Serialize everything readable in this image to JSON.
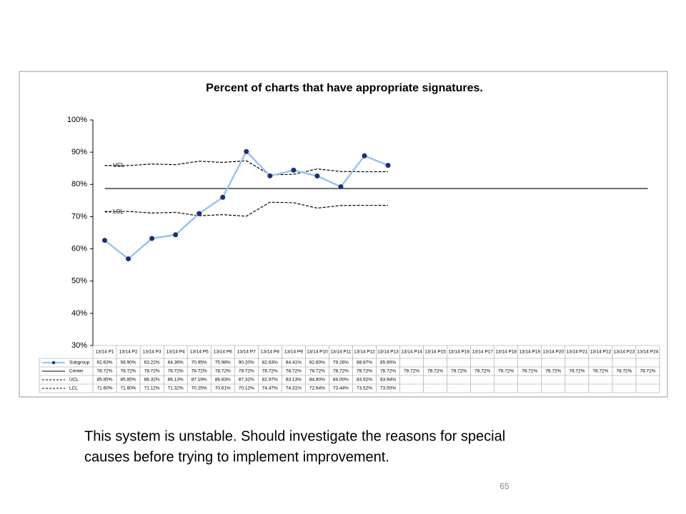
{
  "chart_data": {
    "type": "line",
    "title": "Percent of charts that have appropriate signatures.",
    "categories": [
      "13/14 P1",
      "13/14 P2",
      "13/14 P3",
      "13/14 P4",
      "13/14 P5",
      "13/14 P6",
      "13/14 P7",
      "13/14 P8",
      "13/14 P9",
      "13/14 P10",
      "13/14 P11",
      "13/14 P12",
      "13/14 P13",
      "13/14 P14",
      "13/14 P15",
      "13/14 P16",
      "13/14 P17",
      "13/14 P18",
      "13/14 P19",
      "13/14 P20",
      "13/14 P21",
      "13/14 P22",
      "13/14 P23",
      "13/14 P24"
    ],
    "series": [
      {
        "name": "Subgroup",
        "color": "#9dc3e6",
        "marker_color": "#1a2f78",
        "dash": false,
        "values": [
          62.63,
          56.9,
          63.22,
          64.36,
          70.95,
          75.98,
          90.2,
          82.63,
          84.41,
          82.6,
          79.26,
          88.87,
          85.9,
          null,
          null,
          null,
          null,
          null,
          null,
          null,
          null,
          null,
          null,
          null
        ],
        "value_labels": [
          "62.63%",
          "56.90%",
          "63.22%",
          "64.36%",
          "70.95%",
          "75.98%",
          "90.20%",
          "82.63%",
          "84.41%",
          "82.60%",
          "79.26%",
          "88.87%",
          "85.90%",
          null,
          null,
          null,
          null,
          null,
          null,
          null,
          null,
          null,
          null,
          null
        ]
      },
      {
        "name": "Center",
        "color": "#000000",
        "dash": false,
        "values": [
          78.72,
          78.72,
          78.72,
          78.72,
          78.72,
          78.72,
          78.72,
          78.72,
          78.72,
          78.72,
          78.72,
          78.72,
          78.72,
          78.72,
          78.72,
          78.72,
          78.72,
          78.72,
          78.72,
          78.72,
          78.72,
          78.72,
          78.72,
          78.72
        ],
        "value_labels": [
          "78.72%",
          "78.72%",
          "78.72%",
          "78.72%",
          "78.72%",
          "78.72%",
          "78.72%",
          "78.72%",
          "78.72%",
          "78.72%",
          "78.72%",
          "78.72%",
          "78.72%",
          "78.72%",
          "78.72%",
          "78.72%",
          "78.72%",
          "78.72%",
          "78.72%",
          "78.72%",
          "78.72%",
          "78.72%",
          "78.72%",
          "78.72%"
        ]
      },
      {
        "name": "UCL",
        "color": "#000000",
        "dash": true,
        "values": [
          85.85,
          85.85,
          86.32,
          86.13,
          87.19,
          86.83,
          87.32,
          82.97,
          83.13,
          84.8,
          84.0,
          83.92,
          83.94,
          null,
          null,
          null,
          null,
          null,
          null,
          null,
          null,
          null,
          null,
          null
        ],
        "value_labels": [
          "85.85%",
          "85.85%",
          "86.32%",
          "86.13%",
          "87.19%",
          "86.83%",
          "87.32%",
          "82.97%",
          "83.13%",
          "84.80%",
          "84.00%",
          "83.92%",
          "83.94%",
          null,
          null,
          null,
          null,
          null,
          null,
          null,
          null,
          null,
          null,
          null
        ]
      },
      {
        "name": "LCL",
        "color": "#000000",
        "dash": true,
        "values": [
          71.6,
          71.6,
          71.12,
          71.32,
          70.25,
          70.61,
          70.12,
          74.47,
          74.31,
          72.64,
          73.44,
          73.52,
          73.5,
          null,
          null,
          null,
          null,
          null,
          null,
          null,
          null,
          null,
          null,
          null
        ],
        "value_labels": [
          "71.60%",
          "71.60%",
          "71.12%",
          "71.32%",
          "70.25%",
          "70.61%",
          "70.12%",
          "74.47%",
          "74.31%",
          "72.64%",
          "73.44%",
          "73.52%",
          "73.50%",
          null,
          null,
          null,
          null,
          null,
          null,
          null,
          null,
          null,
          null,
          null
        ]
      }
    ],
    "annotations": [
      "UCL",
      "LCL"
    ],
    "ylim": [
      30,
      100
    ],
    "yticks": [
      {
        "value": 30,
        "label": "30%"
      },
      {
        "value": 40,
        "label": "40%"
      },
      {
        "value": 50,
        "label": "50%"
      },
      {
        "value": 60,
        "label": "60%"
      },
      {
        "value": 70,
        "label": "70%"
      },
      {
        "value": 80,
        "label": "80%"
      },
      {
        "value": 90,
        "label": "90%"
      },
      {
        "value": 100,
        "label": "100%"
      }
    ]
  },
  "note": [
    "This system is unstable. Should investigate the reasons for special",
    "causes before trying to implement improvement."
  ],
  "page_number": "65"
}
